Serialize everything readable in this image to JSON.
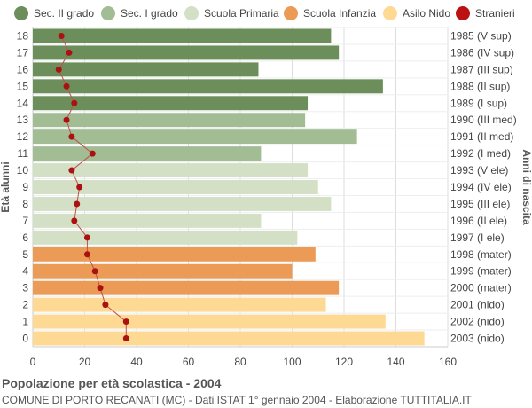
{
  "chart_data": {
    "type": "bar",
    "orientation": "horizontal",
    "title": "Popolazione per età scolastica - 2004",
    "subtitle": "COMUNE DI PORTO RECANATI (MC) - Dati ISTAT 1° gennaio 2004 - Elaborazione TUTTITALIA.IT",
    "ylabel_left": "Età alunni",
    "ylabel_right": "Anni di nascita",
    "xlim": [
      0,
      160
    ],
    "x_ticks": [
      0,
      20,
      40,
      60,
      80,
      100,
      120,
      140,
      160
    ],
    "grid": true,
    "legend": [
      {
        "name": "Sec. II grado",
        "color": "#6b8e5a"
      },
      {
        "name": "Sec. I grado",
        "color": "#a2bc94"
      },
      {
        "name": "Scuola Primaria",
        "color": "#d3e0c6"
      },
      {
        "name": "Scuola Infanzia",
        "color": "#eb9b55"
      },
      {
        "name": "Asilo Nido",
        "color": "#fdd993"
      },
      {
        "name": "Stranieri",
        "color": "#bb1111"
      }
    ],
    "categories": [
      "18",
      "17",
      "16",
      "15",
      "14",
      "13",
      "12",
      "11",
      "10",
      "9",
      "8",
      "7",
      "6",
      "5",
      "4",
      "3",
      "2",
      "1",
      "0"
    ],
    "birth_years": [
      "1985 (V sup)",
      "1986 (IV sup)",
      "1987 (III sup)",
      "1988 (II sup)",
      "1989 (I sup)",
      "1990 (III med)",
      "1991 (II med)",
      "1992 (I med)",
      "1993 (V ele)",
      "1994 (IV ele)",
      "1995 (III ele)",
      "1996 (II ele)",
      "1997 (I ele)",
      "1998 (mater)",
      "1999 (mater)",
      "2000 (mater)",
      "2001 (nido)",
      "2002 (nido)",
      "2003 (nido)"
    ],
    "values": [
      115,
      118,
      87,
      135,
      106,
      105,
      125,
      88,
      106,
      110,
      115,
      88,
      102,
      109,
      100,
      118,
      113,
      136,
      151
    ],
    "groups": [
      0,
      0,
      0,
      0,
      0,
      1,
      1,
      1,
      2,
      2,
      2,
      2,
      2,
      3,
      3,
      3,
      4,
      4,
      4
    ],
    "stranieri": [
      11,
      14,
      10,
      13,
      16,
      13,
      15,
      23,
      15,
      18,
      17,
      16,
      21,
      21,
      24,
      26,
      28,
      36,
      36
    ]
  }
}
